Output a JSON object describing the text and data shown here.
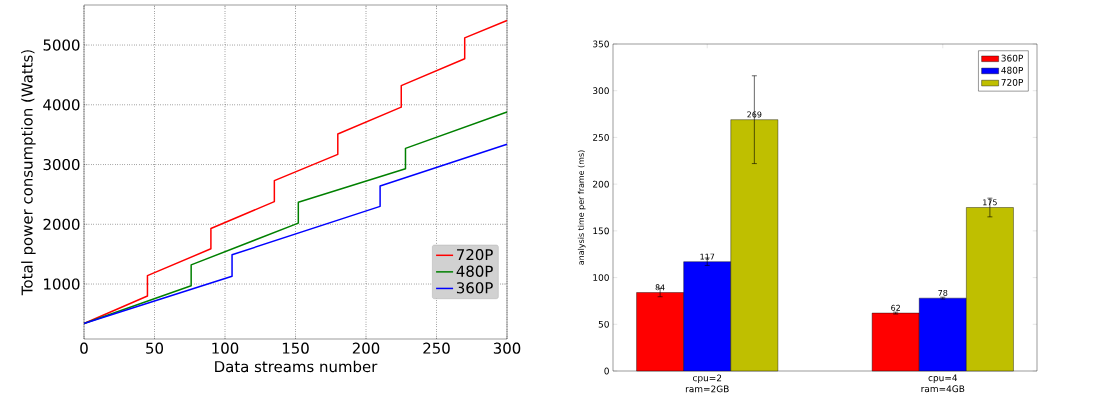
{
  "chart_data": [
    {
      "type": "line",
      "xlabel": "Data streams number",
      "ylabel": "Total power consumption (Watts)",
      "xlim": [
        0,
        300
      ],
      "ylim": [
        80,
        5670
      ],
      "xticks": [
        0,
        50,
        100,
        150,
        200,
        250,
        300
      ],
      "yticks": [
        1000,
        2000,
        3000,
        4000,
        5000
      ],
      "grid": true,
      "legend": "bottom right",
      "series": [
        {
          "name": "720P",
          "color": "#ff0000",
          "x": [
            0,
            45,
            45,
            90,
            90,
            135,
            135,
            180,
            180,
            225,
            225,
            270,
            270,
            300
          ],
          "values": [
            340,
            800,
            1140,
            1590,
            1930,
            2380,
            2730,
            3170,
            3510,
            3960,
            4320,
            4770,
            5120,
            5410
          ]
        },
        {
          "name": "480P",
          "color": "#008000",
          "x": [
            0,
            76,
            76,
            152,
            152,
            228,
            228,
            300
          ],
          "values": [
            340,
            970,
            1320,
            2020,
            2370,
            2930,
            3270,
            3880
          ]
        },
        {
          "name": "360P",
          "color": "#0000ff",
          "x": [
            0,
            105,
            105,
            210,
            210,
            300
          ],
          "values": [
            340,
            1130,
            1490,
            2300,
            2640,
            3340
          ]
        }
      ]
    },
    {
      "type": "bar",
      "ylabel": "analysis time per frame (ms)",
      "categories": [
        "cpu=2 ram=2GB",
        "cpu=4 ram=4GB"
      ],
      "ylim": [
        0,
        350
      ],
      "yticks": [
        0,
        50,
        100,
        150,
        200,
        250,
        300,
        350
      ],
      "legend": "top right",
      "data_labels": true,
      "series": [
        {
          "name": "360P",
          "color": "#ff0000",
          "values": [
            84,
            62
          ],
          "errors": [
            4.5,
            1
          ]
        },
        {
          "name": "480P",
          "color": "#0000ff",
          "values": [
            117,
            78
          ],
          "errors": [
            4,
            1
          ]
        },
        {
          "name": "720P",
          "color": "#bfbf00",
          "values": [
            269,
            175
          ],
          "errors": [
            47,
            10
          ]
        }
      ]
    }
  ]
}
